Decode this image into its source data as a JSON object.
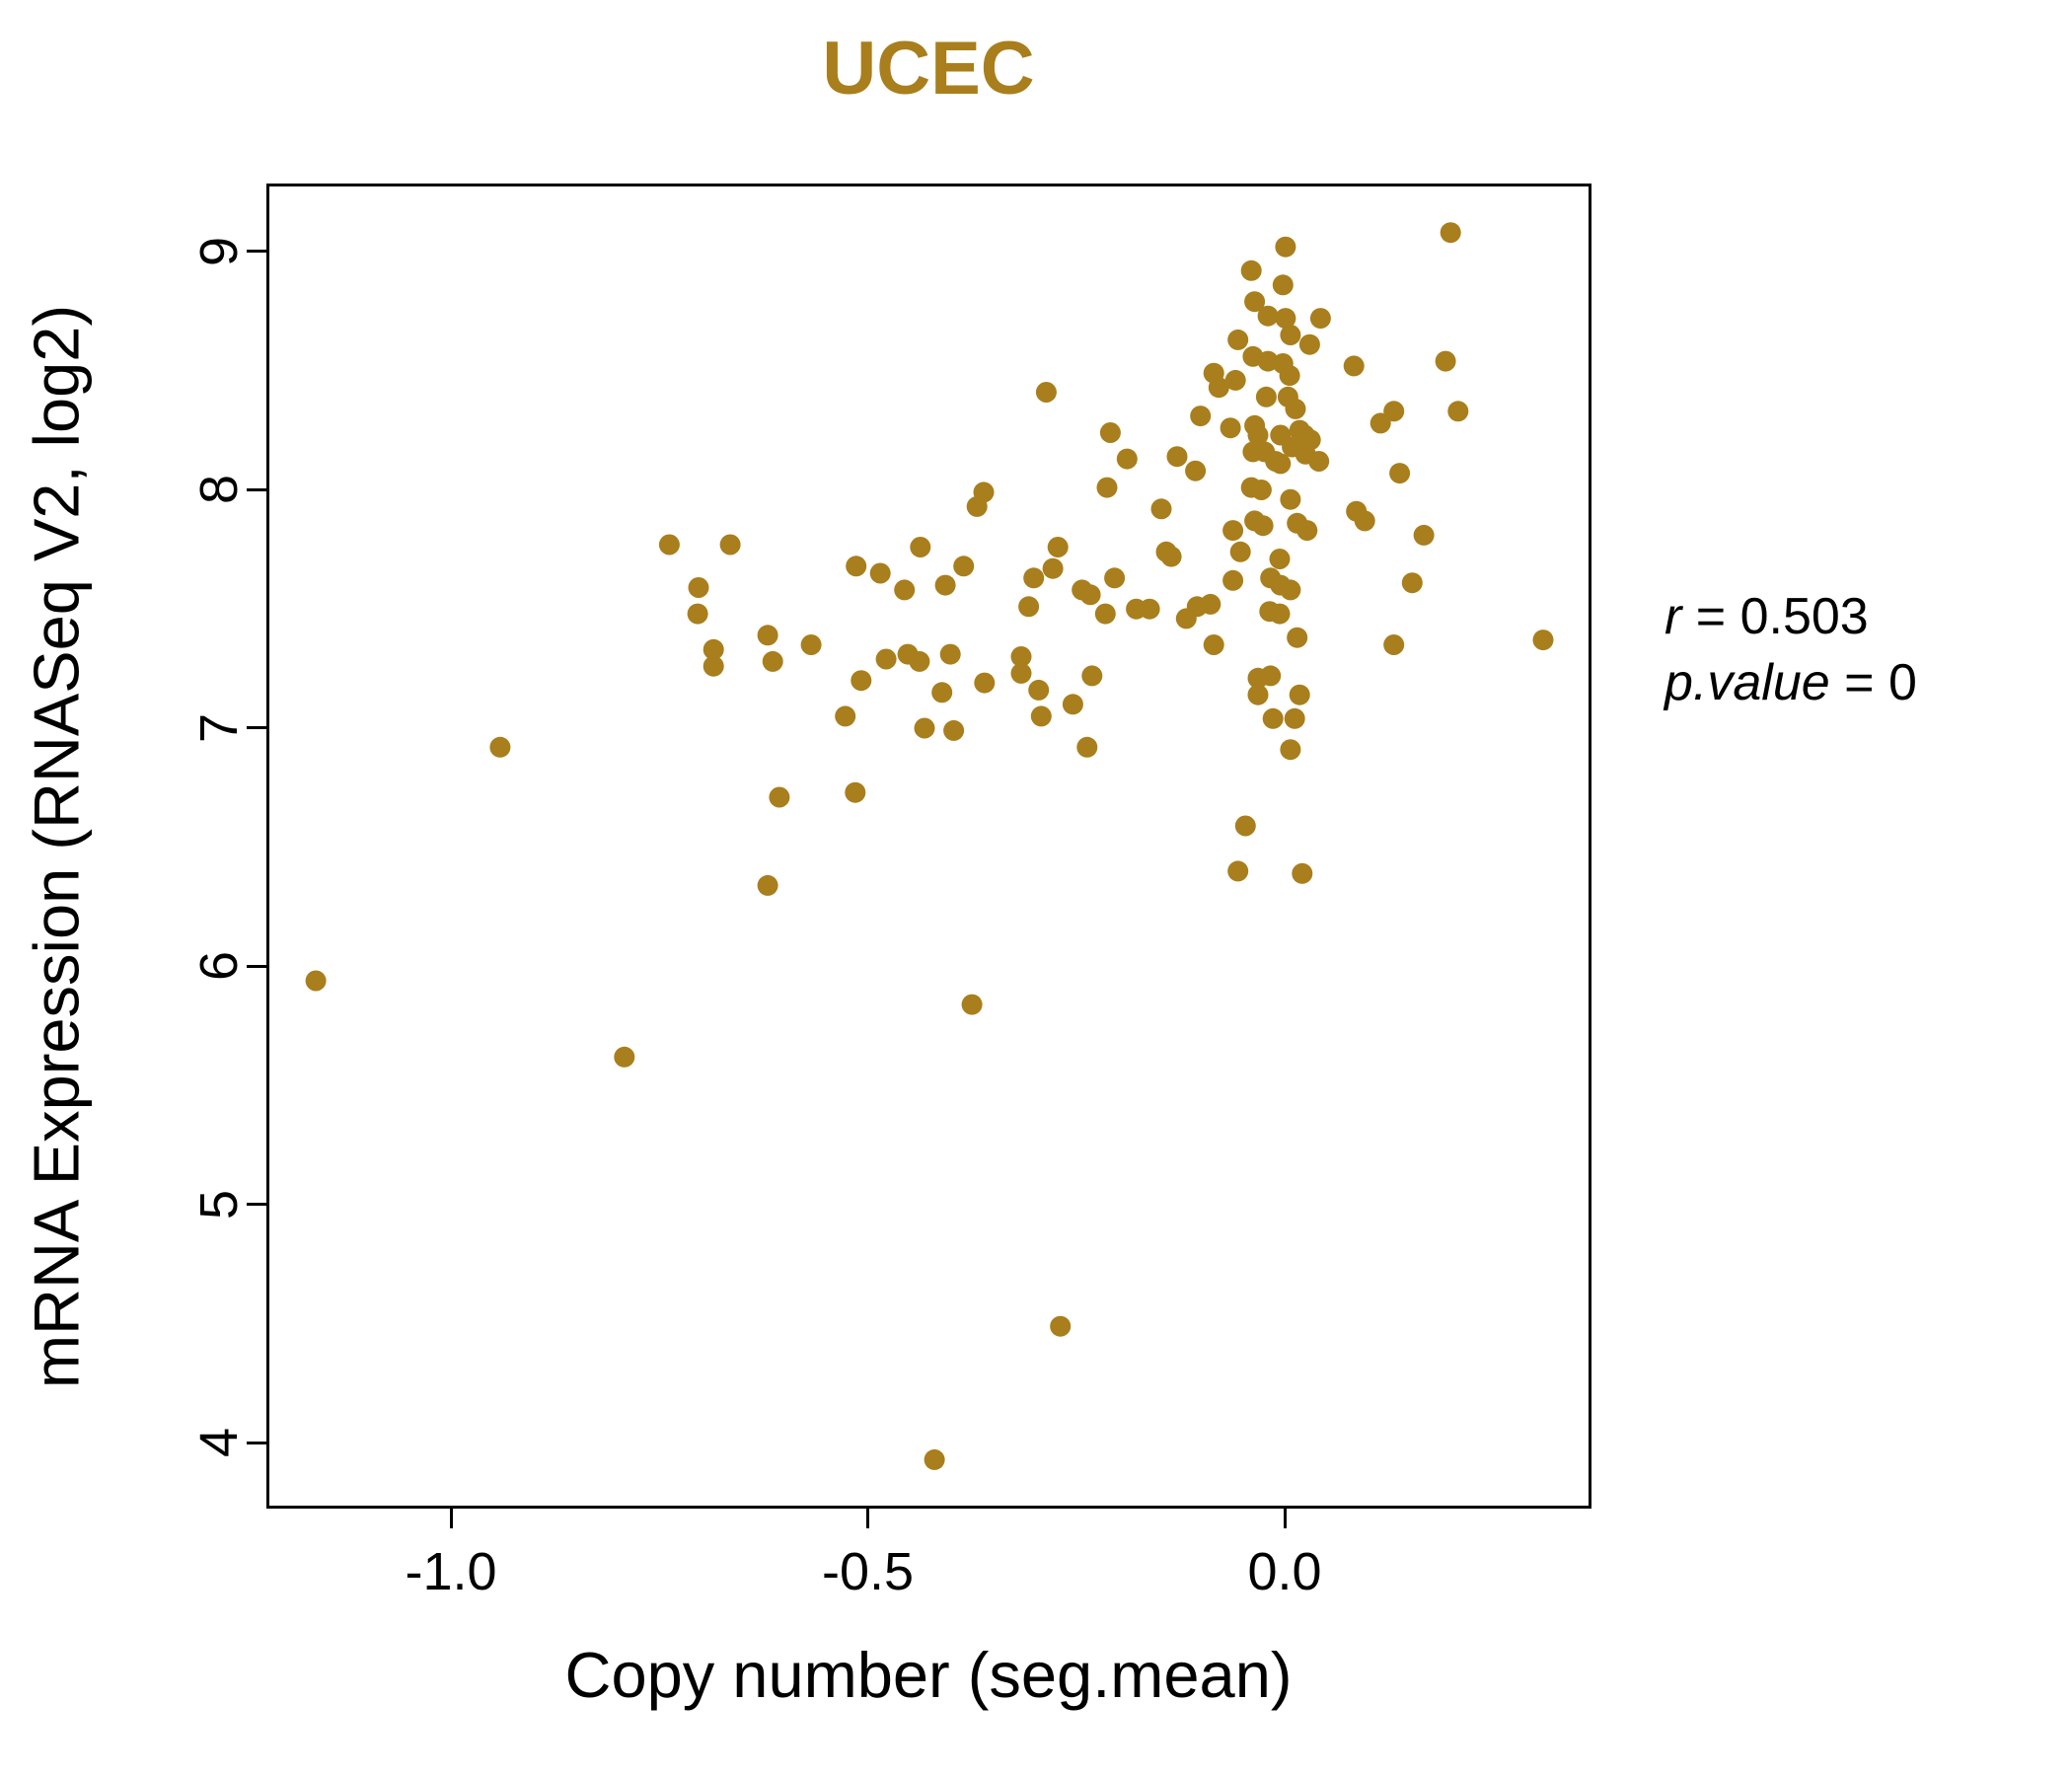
{
  "figure": {
    "background": "#FFFFFF",
    "accent_gold": "#A97E1C",
    "axis_color": "#000000"
  },
  "annotation": {
    "r_label": "r",
    "r_rest": " = 0.503",
    "p_label": "p.value",
    "p_rest": " = 0"
  },
  "chart_data": {
    "type": "scatter",
    "title": "UCEC",
    "xlabel": "Copy number (seg.mean)",
    "ylabel": "mRNA Expression (RNASeq V2, log2)",
    "x_ticks": [
      -1.0,
      -0.5,
      0.0
    ],
    "x_tick_labels": [
      "-1.0",
      "-0.5",
      "0.0"
    ],
    "y_ticks": [
      4,
      5,
      6,
      7,
      8,
      9
    ],
    "y_tick_labels": [
      "4",
      "5",
      "6",
      "7",
      "8",
      "9"
    ],
    "xlim": [
      -1.2213,
      0.368
    ],
    "ylim": [
      3.7246,
      9.2857
    ],
    "grid": false,
    "legend": "none",
    "point_color": "#A97E1C",
    "point_radius_px": 10.5,
    "correlation_r": 0.503,
    "p_value": 0,
    "points": [
      [
        -1.162,
        5.94
      ],
      [
        -0.941,
        6.92
      ],
      [
        -0.792,
        5.62
      ],
      [
        -0.42,
        3.93
      ],
      [
        -0.269,
        4.49
      ],
      [
        -0.375,
        5.84
      ],
      [
        -0.62,
        6.34
      ],
      [
        -0.606,
        6.71
      ],
      [
        -0.515,
        6.73
      ],
      [
        -0.047,
        6.59
      ],
      [
        -0.056,
        6.4
      ],
      [
        0.021,
        6.39
      ],
      [
        -0.738,
        7.77
      ],
      [
        -0.665,
        7.77
      ],
      [
        -0.703,
        7.59
      ],
      [
        -0.704,
        7.48
      ],
      [
        -0.685,
        7.33
      ],
      [
        -0.685,
        7.26
      ],
      [
        -0.62,
        7.39
      ],
      [
        -0.614,
        7.28
      ],
      [
        -0.568,
        7.35
      ],
      [
        -0.508,
        7.2
      ],
      [
        -0.514,
        7.68
      ],
      [
        -0.485,
        7.65
      ],
      [
        -0.456,
        7.58
      ],
      [
        -0.437,
        7.76
      ],
      [
        -0.407,
        7.6
      ],
      [
        -0.385,
        7.68
      ],
      [
        -0.478,
        7.29
      ],
      [
        -0.452,
        7.31
      ],
      [
        -0.438,
        7.28
      ],
      [
        -0.401,
        7.31
      ],
      [
        -0.411,
        7.15
      ],
      [
        -0.36,
        7.19
      ],
      [
        -0.527,
        7.05
      ],
      [
        -0.432,
        7.0
      ],
      [
        -0.397,
        6.99
      ],
      [
        -0.361,
        7.99
      ],
      [
        -0.369,
        7.93
      ],
      [
        -0.286,
        8.41
      ],
      [
        -0.209,
        8.24
      ],
      [
        -0.189,
        8.13
      ],
      [
        -0.213,
        8.01
      ],
      [
        -0.129,
        8.14
      ],
      [
        -0.107,
        8.08
      ],
      [
        -0.101,
        8.31
      ],
      [
        -0.085,
        8.49
      ],
      [
        -0.079,
        8.43
      ],
      [
        -0.148,
        7.92
      ],
      [
        -0.142,
        7.74
      ],
      [
        -0.136,
        7.72
      ],
      [
        -0.272,
        7.76
      ],
      [
        -0.278,
        7.67
      ],
      [
        -0.301,
        7.63
      ],
      [
        -0.204,
        7.63
      ],
      [
        -0.243,
        7.58
      ],
      [
        -0.233,
        7.56
      ],
      [
        -0.307,
        7.51
      ],
      [
        -0.215,
        7.48
      ],
      [
        -0.178,
        7.5
      ],
      [
        -0.162,
        7.5
      ],
      [
        -0.105,
        7.51
      ],
      [
        -0.089,
        7.52
      ],
      [
        -0.118,
        7.46
      ],
      [
        -0.085,
        7.35
      ],
      [
        -0.316,
        7.3
      ],
      [
        -0.316,
        7.23
      ],
      [
        -0.295,
        7.16
      ],
      [
        -0.292,
        7.05
      ],
      [
        -0.254,
        7.1
      ],
      [
        -0.231,
        7.22
      ],
      [
        -0.237,
        6.92
      ],
      [
        -0.059,
        8.46
      ],
      [
        -0.022,
        8.39
      ],
      [
        0.004,
        8.39
      ],
      [
        0.013,
        8.34
      ],
      [
        -0.065,
        8.26
      ],
      [
        -0.036,
        8.27
      ],
      [
        -0.032,
        8.23
      ],
      [
        -0.005,
        8.23
      ],
      [
        0.018,
        8.25
      ],
      [
        0.024,
        8.23
      ],
      [
        0.031,
        8.21
      ],
      [
        -0.038,
        8.16
      ],
      [
        -0.024,
        8.16
      ],
      [
        0.009,
        8.18
      ],
      [
        0.025,
        8.15
      ],
      [
        0.041,
        8.12
      ],
      [
        -0.011,
        8.12
      ],
      [
        -0.005,
        8.11
      ],
      [
        -0.04,
        8.01
      ],
      [
        -0.028,
        8.0
      ],
      [
        0.007,
        7.96
      ],
      [
        -0.036,
        7.87
      ],
      [
        -0.026,
        7.85
      ],
      [
        -0.062,
        7.83
      ],
      [
        0.015,
        7.86
      ],
      [
        0.027,
        7.83
      ],
      [
        -0.053,
        7.74
      ],
      [
        -0.006,
        7.71
      ],
      [
        -0.062,
        7.62
      ],
      [
        -0.017,
        7.63
      ],
      [
        -0.005,
        7.6
      ],
      [
        0.007,
        7.58
      ],
      [
        -0.018,
        7.49
      ],
      [
        -0.006,
        7.48
      ],
      [
        0.015,
        7.38
      ],
      [
        -0.032,
        7.21
      ],
      [
        -0.017,
        7.22
      ],
      [
        -0.032,
        7.14
      ],
      [
        0.018,
        7.14
      ],
      [
        -0.014,
        7.04
      ],
      [
        0.012,
        7.04
      ],
      [
        0.007,
        6.91
      ],
      [
        0.001,
        9.02
      ],
      [
        -0.04,
        8.92
      ],
      [
        -0.002,
        8.86
      ],
      [
        -0.036,
        8.79
      ],
      [
        -0.02,
        8.73
      ],
      [
        0.001,
        8.72
      ],
      [
        0.043,
        8.72
      ],
      [
        0.007,
        8.65
      ],
      [
        0.03,
        8.61
      ],
      [
        -0.056,
        8.63
      ],
      [
        -0.038,
        8.56
      ],
      [
        -0.02,
        8.54
      ],
      [
        -0.002,
        8.53
      ],
      [
        0.006,
        8.48
      ],
      [
        0.083,
        8.52
      ],
      [
        0.199,
        9.08
      ],
      [
        0.193,
        8.54
      ],
      [
        0.131,
        8.33
      ],
      [
        0.208,
        8.33
      ],
      [
        0.115,
        8.28
      ],
      [
        0.138,
        8.07
      ],
      [
        0.086,
        7.91
      ],
      [
        0.096,
        7.87
      ],
      [
        0.167,
        7.81
      ],
      [
        0.153,
        7.61
      ],
      [
        0.131,
        7.35
      ],
      [
        0.31,
        7.37
      ]
    ]
  }
}
